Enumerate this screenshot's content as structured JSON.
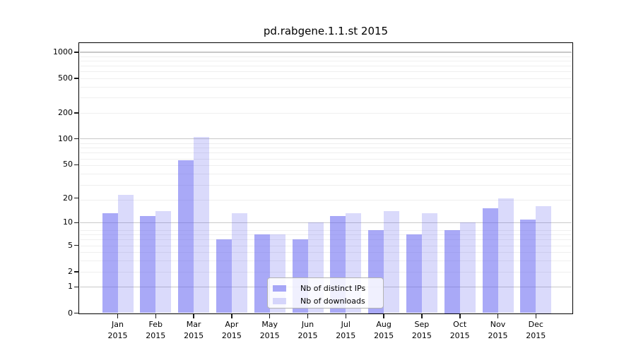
{
  "title": "pd.rabgene.1.1.st 2015",
  "chart_data": {
    "type": "bar",
    "title": "pd.rabgene.1.1.st 2015",
    "categories": [
      "Jan",
      "Feb",
      "Mar",
      "Apr",
      "May",
      "Jun",
      "Jul",
      "Aug",
      "Sep",
      "Oct",
      "Nov",
      "Dec"
    ],
    "year": "2015",
    "series": [
      {
        "name": "Nb of distinct IPs",
        "color": "rgba(98,98,240,0.55)",
        "composite_color": "#aaaaf8",
        "values": [
          13,
          12,
          56,
          6,
          7,
          6,
          12,
          8,
          7,
          8,
          15,
          11
        ]
      },
      {
        "name": "Nb of downloads",
        "color": "rgba(98,98,240,0.235)",
        "composite_color": "#dadaf8",
        "values": [
          22,
          14,
          105,
          13,
          7,
          10,
          13,
          14,
          13,
          10,
          20,
          16
        ]
      }
    ],
    "yscale": "log10(1+y)",
    "yticks": [
      0,
      1,
      2,
      5,
      10,
      20,
      50,
      100,
      200,
      500,
      1000
    ],
    "ylim": [
      0,
      1275
    ],
    "xlabel": "",
    "ylabel": "",
    "grid": "horizontal, minor log lines, major lines at 1/10/100/1000",
    "legend_position": "lower-center-inside"
  },
  "colors": {
    "background": "#ffffff",
    "spine": "#000000",
    "grid_major": "#c9c9c9",
    "grid_minor": "#efefef",
    "text": "#000000",
    "legend_border": "#b3b3b3"
  }
}
